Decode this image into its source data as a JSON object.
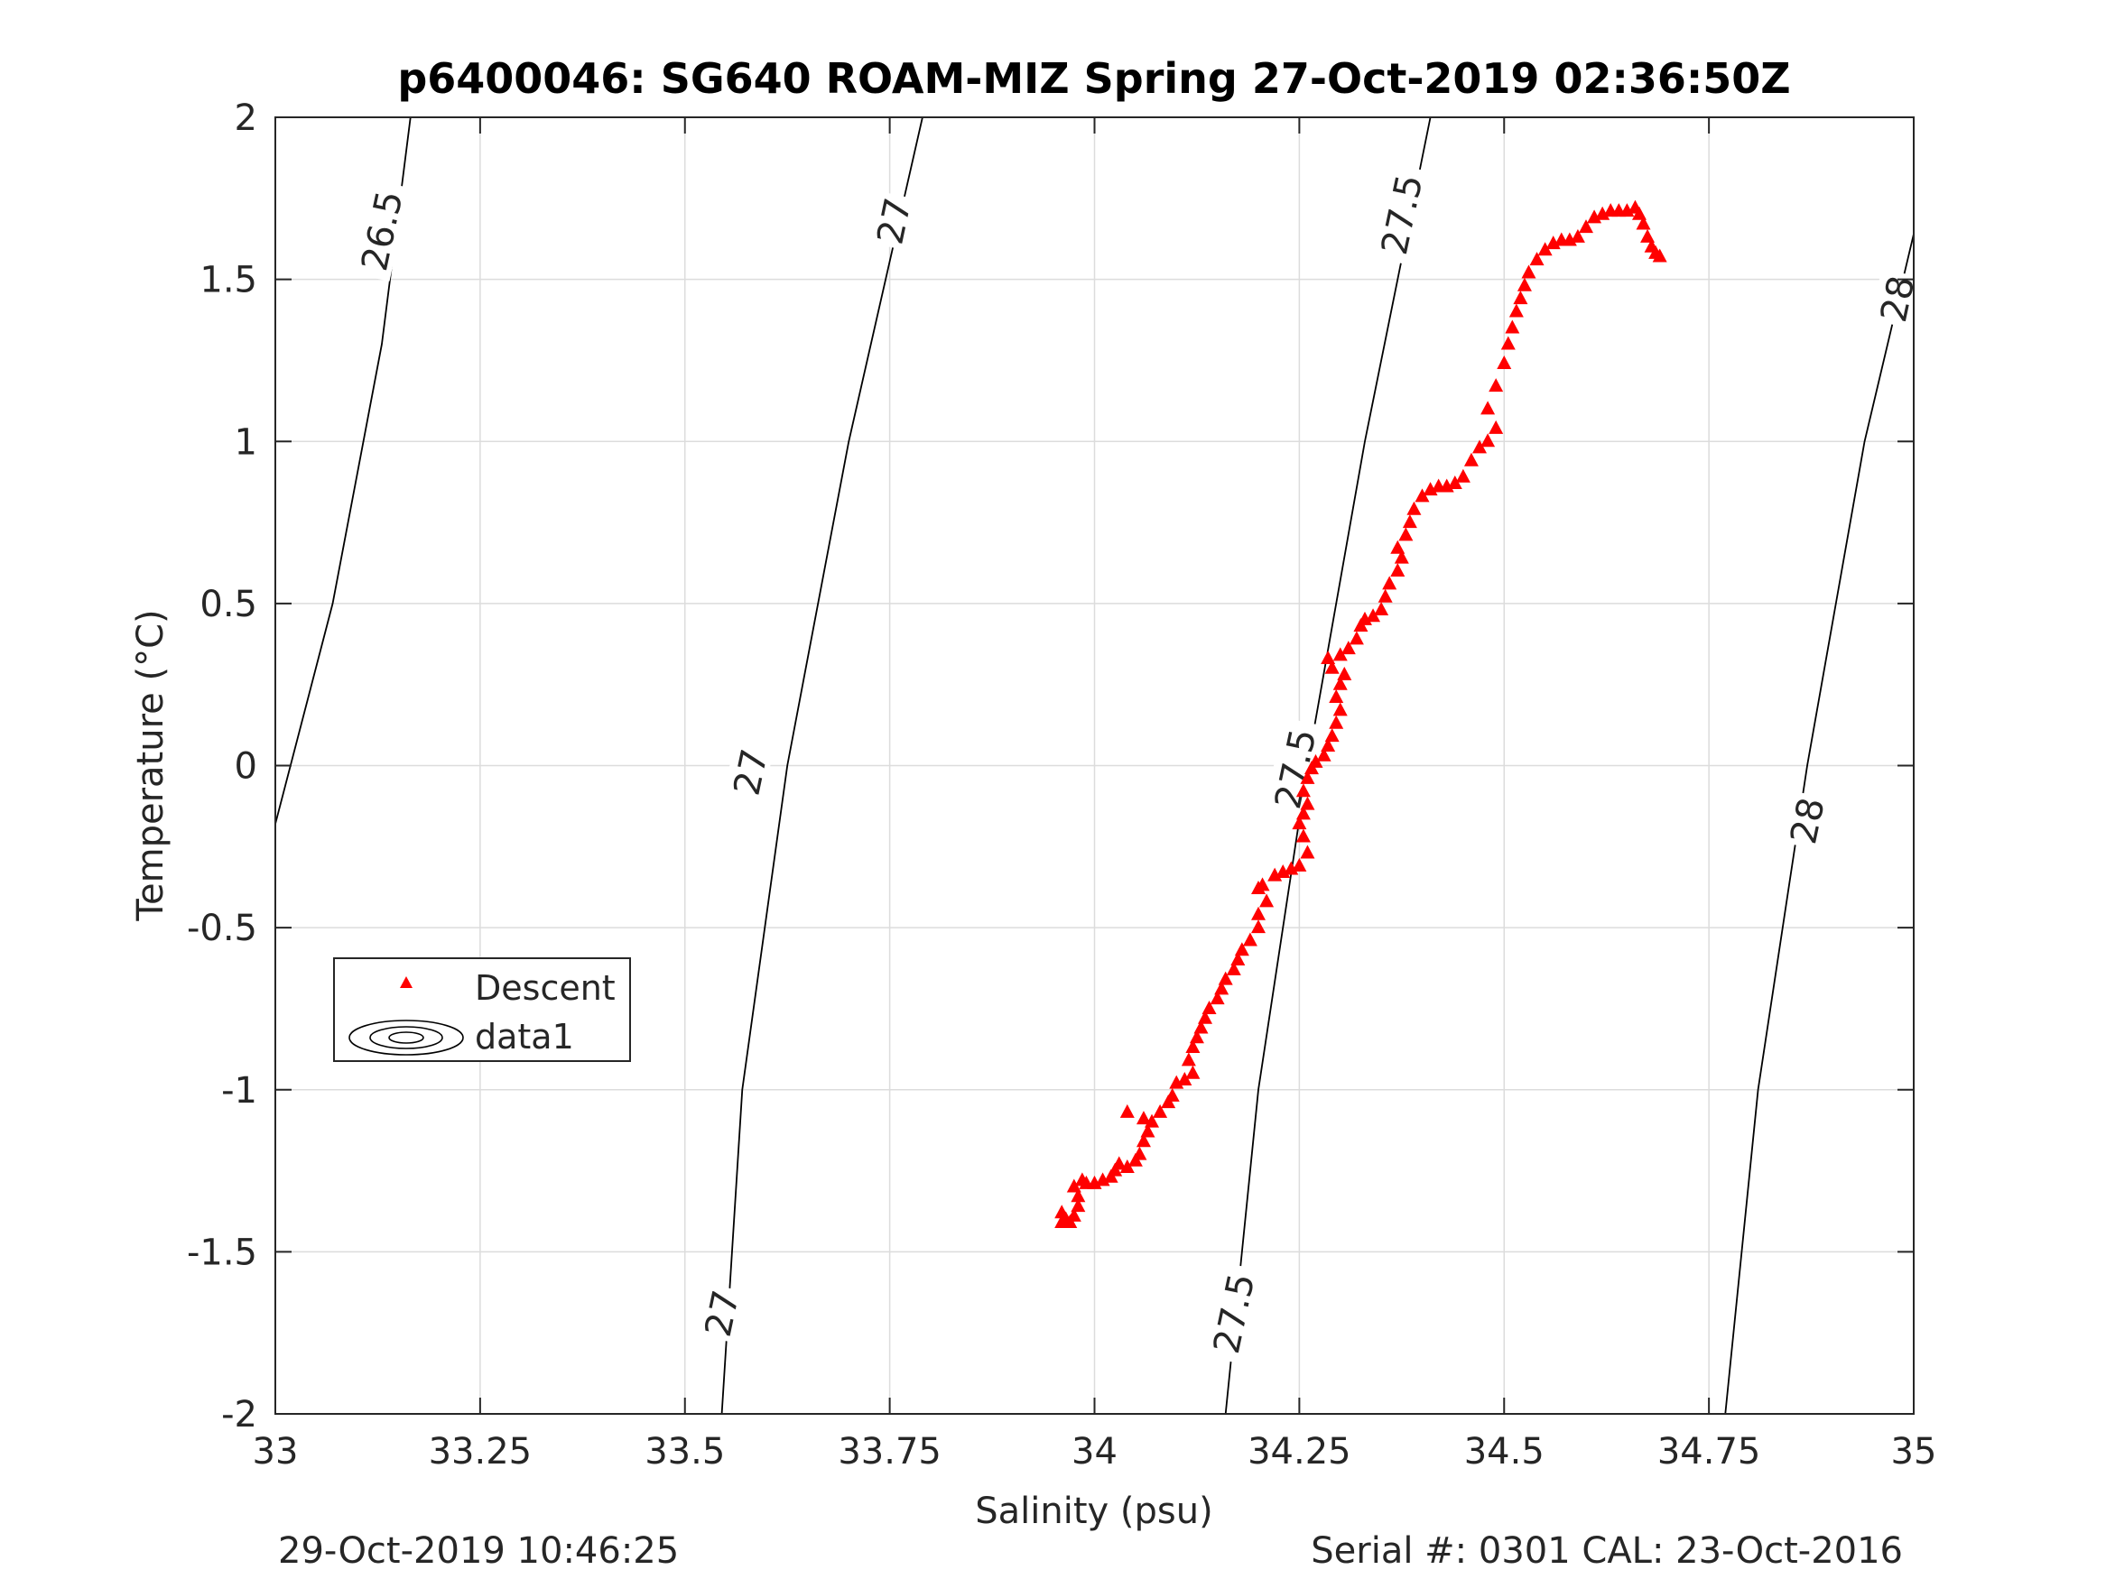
{
  "chart_data": {
    "type": "scatter",
    "title": "p6400046: SG640 ROAM-MIZ Spring 27-Oct-2019 02:36:50Z",
    "xlabel": "Salinity (psu)",
    "ylabel": "Temperature (°C)",
    "xlim": [
      33,
      35
    ],
    "ylim": [
      -2,
      2
    ],
    "xticks": [
      33,
      33.25,
      33.5,
      33.75,
      34,
      34.25,
      34.5,
      34.75,
      35
    ],
    "xtick_labels": [
      "33",
      "33.25",
      "33.5",
      "33.75",
      "34",
      "34.25",
      "34.5",
      "34.75",
      "35"
    ],
    "yticks": [
      -2,
      -1.5,
      -1,
      -0.5,
      0,
      0.5,
      1,
      1.5,
      2
    ],
    "ytick_labels": [
      "-2",
      "-1.5",
      "-1",
      "-0.5",
      "0",
      "0.5",
      "1",
      "1.5",
      "2"
    ],
    "grid": true,
    "legend_position": "lower-left",
    "legend": [
      {
        "label": "Descent",
        "marker": "triangle",
        "color": "#ff0000"
      },
      {
        "label": "data1",
        "marker": "contour",
        "color": "#000000"
      }
    ],
    "series": [
      {
        "name": "Descent",
        "color": "#ff0000",
        "marker": "triangle",
        "points": [
          [
            33.96,
            -1.41
          ],
          [
            33.965,
            -1.4
          ],
          [
            33.96,
            -1.38
          ],
          [
            33.97,
            -1.41
          ],
          [
            33.975,
            -1.39
          ],
          [
            33.98,
            -1.36
          ],
          [
            33.98,
            -1.33
          ],
          [
            33.975,
            -1.3
          ],
          [
            33.985,
            -1.28
          ],
          [
            33.99,
            -1.29
          ],
          [
            34.0,
            -1.29
          ],
          [
            34.01,
            -1.28
          ],
          [
            34.02,
            -1.27
          ],
          [
            34.025,
            -1.25
          ],
          [
            34.03,
            -1.23
          ],
          [
            34.04,
            -1.24
          ],
          [
            34.05,
            -1.22
          ],
          [
            34.055,
            -1.2
          ],
          [
            34.06,
            -1.16
          ],
          [
            34.065,
            -1.13
          ],
          [
            34.07,
            -1.1
          ],
          [
            34.04,
            -1.07
          ],
          [
            34.06,
            -1.09
          ],
          [
            34.08,
            -1.07
          ],
          [
            34.09,
            -1.04
          ],
          [
            34.095,
            -1.02
          ],
          [
            34.1,
            -0.98
          ],
          [
            34.11,
            -0.97
          ],
          [
            34.12,
            -0.95
          ],
          [
            34.115,
            -0.91
          ],
          [
            34.12,
            -0.87
          ],
          [
            34.125,
            -0.84
          ],
          [
            34.13,
            -0.81
          ],
          [
            34.135,
            -0.78
          ],
          [
            34.14,
            -0.75
          ],
          [
            34.15,
            -0.72
          ],
          [
            34.155,
            -0.69
          ],
          [
            34.16,
            -0.66
          ],
          [
            34.17,
            -0.63
          ],
          [
            34.175,
            -0.6
          ],
          [
            34.18,
            -0.57
          ],
          [
            34.19,
            -0.54
          ],
          [
            34.2,
            -0.5
          ],
          [
            34.2,
            -0.46
          ],
          [
            34.21,
            -0.42
          ],
          [
            34.2,
            -0.38
          ],
          [
            34.205,
            -0.37
          ],
          [
            34.22,
            -0.34
          ],
          [
            34.23,
            -0.33
          ],
          [
            34.24,
            -0.32
          ],
          [
            34.25,
            -0.31
          ],
          [
            34.26,
            -0.27
          ],
          [
            34.255,
            -0.22
          ],
          [
            34.25,
            -0.18
          ],
          [
            34.255,
            -0.15
          ],
          [
            34.26,
            -0.12
          ],
          [
            34.255,
            -0.08
          ],
          [
            34.26,
            -0.04
          ],
          [
            34.265,
            -0.01
          ],
          [
            34.27,
            0.01
          ],
          [
            34.28,
            0.03
          ],
          [
            34.285,
            0.06
          ],
          [
            34.29,
            0.09
          ],
          [
            34.295,
            0.13
          ],
          [
            34.3,
            0.17
          ],
          [
            34.295,
            0.21
          ],
          [
            34.3,
            0.25
          ],
          [
            34.305,
            0.28
          ],
          [
            34.29,
            0.3
          ],
          [
            34.285,
            0.33
          ],
          [
            34.3,
            0.34
          ],
          [
            34.31,
            0.36
          ],
          [
            34.32,
            0.39
          ],
          [
            34.325,
            0.43
          ],
          [
            34.33,
            0.45
          ],
          [
            34.34,
            0.46
          ],
          [
            34.35,
            0.48
          ],
          [
            34.355,
            0.52
          ],
          [
            34.36,
            0.56
          ],
          [
            34.37,
            0.6
          ],
          [
            34.375,
            0.64
          ],
          [
            34.37,
            0.67
          ],
          [
            34.38,
            0.71
          ],
          [
            34.385,
            0.75
          ],
          [
            34.39,
            0.79
          ],
          [
            34.4,
            0.83
          ],
          [
            34.41,
            0.85
          ],
          [
            34.42,
            0.86
          ],
          [
            34.43,
            0.86
          ],
          [
            34.44,
            0.87
          ],
          [
            34.45,
            0.89
          ],
          [
            34.46,
            0.94
          ],
          [
            34.47,
            0.98
          ],
          [
            34.48,
            1.0
          ],
          [
            34.49,
            1.04
          ],
          [
            34.48,
            1.1
          ],
          [
            34.49,
            1.17
          ],
          [
            34.5,
            1.24
          ],
          [
            34.505,
            1.3
          ],
          [
            34.51,
            1.35
          ],
          [
            34.515,
            1.4
          ],
          [
            34.52,
            1.44
          ],
          [
            34.525,
            1.48
          ],
          [
            34.53,
            1.52
          ],
          [
            34.54,
            1.56
          ],
          [
            34.55,
            1.59
          ],
          [
            34.56,
            1.61
          ],
          [
            34.57,
            1.62
          ],
          [
            34.58,
            1.62
          ],
          [
            34.59,
            1.63
          ],
          [
            34.6,
            1.66
          ],
          [
            34.61,
            1.69
          ],
          [
            34.62,
            1.7
          ],
          [
            34.63,
            1.71
          ],
          [
            34.64,
            1.71
          ],
          [
            34.65,
            1.71
          ],
          [
            34.66,
            1.72
          ],
          [
            34.665,
            1.7
          ],
          [
            34.67,
            1.67
          ],
          [
            34.675,
            1.63
          ],
          [
            34.68,
            1.6
          ],
          [
            34.685,
            1.58
          ],
          [
            34.69,
            1.57
          ]
        ]
      },
      {
        "name": "data1",
        "type": "contour",
        "color": "#000000",
        "lines": [
          {
            "level": "26.5",
            "points": [
              [
                33.0,
                -0.18
              ],
              [
                33.07,
                0.5
              ],
              [
                33.13,
                1.3
              ],
              [
                33.165,
                2.0
              ]
            ]
          },
          {
            "level": "27",
            "points": [
              [
                33.545,
                -2.0
              ],
              [
                33.57,
                -1.0
              ],
              [
                33.625,
                0.0
              ],
              [
                33.7,
                1.0
              ],
              [
                33.79,
                2.0
              ]
            ]
          },
          {
            "level": "27.5",
            "points": [
              [
                34.16,
                -2.0
              ],
              [
                34.2,
                -1.0
              ],
              [
                34.26,
                0.0
              ],
              [
                34.33,
                1.0
              ],
              [
                34.41,
                2.0
              ]
            ]
          },
          {
            "level": "28",
            "points": [
              [
                34.77,
                -2.0
              ],
              [
                34.81,
                -1.0
              ],
              [
                34.87,
                0.0
              ],
              [
                34.94,
                1.0
              ],
              [
                35.0,
                1.64
              ]
            ]
          }
        ],
        "labels": [
          {
            "text": "26.5",
            "x": 33.13,
            "y": 1.65
          },
          {
            "text": "27",
            "x": 33.58,
            "y": -0.02
          },
          {
            "text": "27",
            "x": 33.755,
            "y": 1.68
          },
          {
            "text": "27",
            "x": 33.545,
            "y": -1.69
          },
          {
            "text": "27.5",
            "x": 34.375,
            "y": 1.7
          },
          {
            "text": "27.5",
            "x": 34.245,
            "y": -0.01
          },
          {
            "text": "27.5",
            "x": 34.17,
            "y": -1.69
          },
          {
            "text": "28",
            "x": 34.87,
            "y": -0.17
          },
          {
            "text": "28",
            "x": 34.98,
            "y": 1.44
          }
        ]
      }
    ]
  },
  "footer": {
    "left": "29-Oct-2019 10:46:25",
    "right": "Serial #: 0301  CAL: 23-Oct-2016"
  }
}
